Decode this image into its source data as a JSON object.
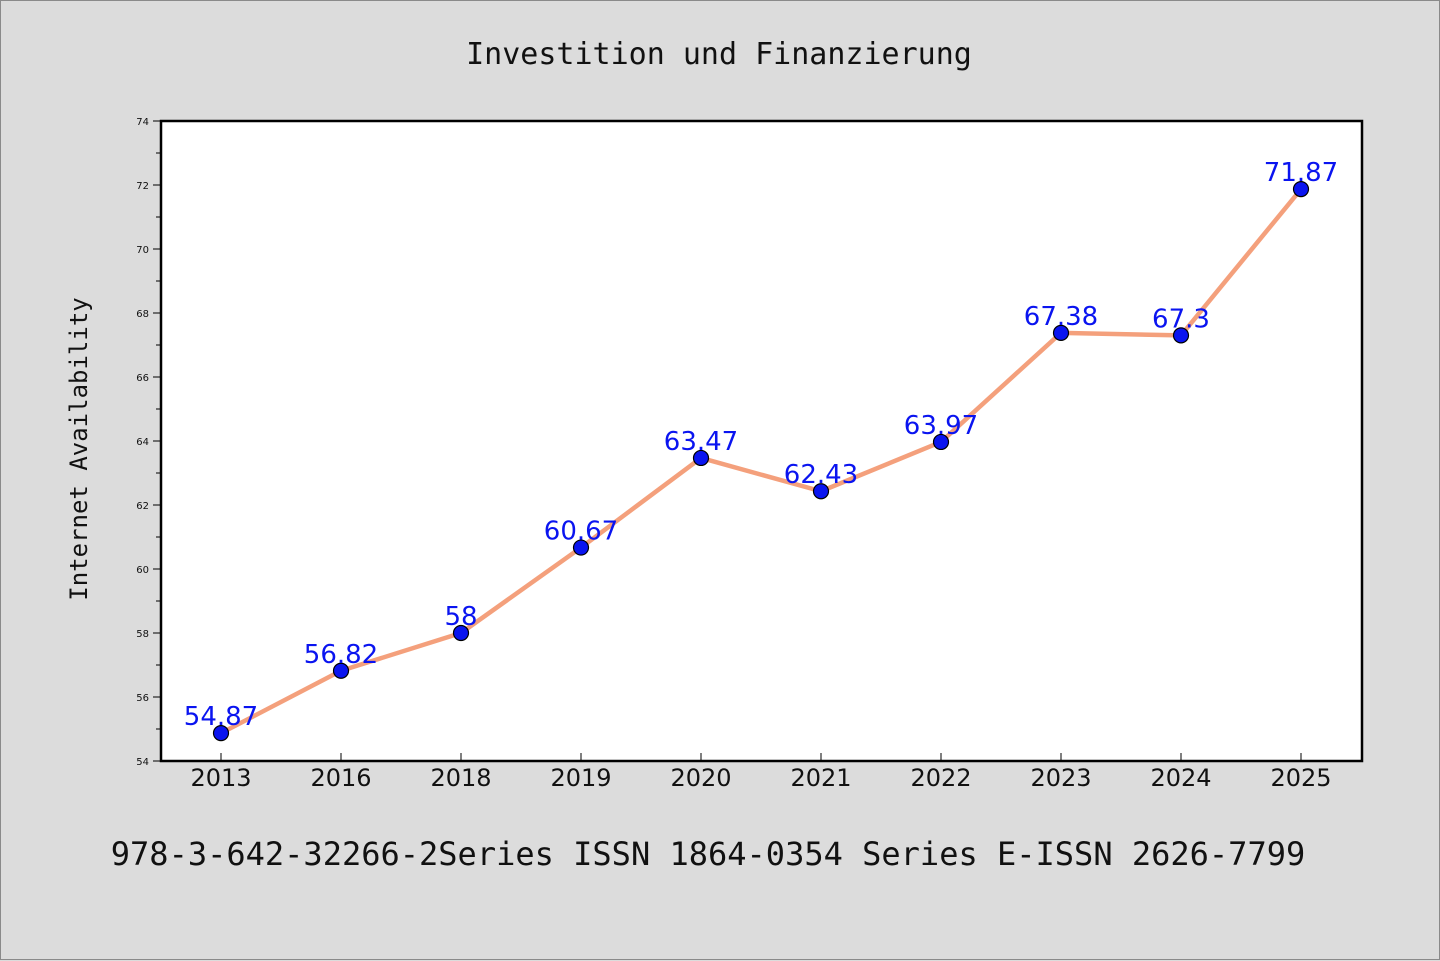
{
  "chart_data": {
    "type": "line",
    "title": "Investition und Finanzierung",
    "xlabel": "",
    "ylabel": "Internet Availability",
    "categories": [
      "2013",
      "2016",
      "2018",
      "2019",
      "2020",
      "2021",
      "2022",
      "2023",
      "2024",
      "2025"
    ],
    "values": [
      54.87,
      56.82,
      58,
      60.67,
      63.47,
      62.43,
      63.97,
      67.38,
      67.3,
      71.87
    ],
    "data_labels": [
      "54.87",
      "56.82",
      "58",
      "60.67",
      "63.47",
      "62.43",
      "63.97",
      "67.38",
      "67.3",
      "71.87"
    ],
    "ylim": [
      54,
      74
    ],
    "yticks": [
      54,
      56,
      58,
      60,
      62,
      64,
      66,
      68,
      70,
      72,
      74
    ],
    "grid": false,
    "legend": "none",
    "colors": {
      "line": "#f4a07c",
      "marker": "#0a14f0",
      "label": "#0a14f0",
      "background": "#dcdcdc",
      "plot": "#ffffff"
    }
  },
  "footer": "978-3-642-32266-2Series ISSN 1864-0354 Series E-ISSN 2626-7799"
}
